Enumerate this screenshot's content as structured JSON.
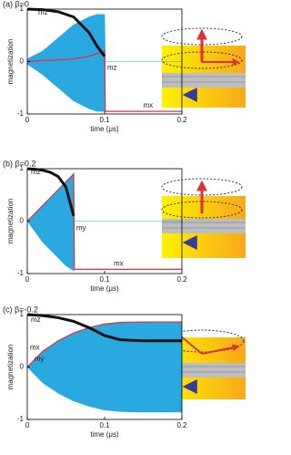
{
  "chart_data": [
    {
      "type": "line",
      "title": "(a)  β=0",
      "x_label": "time (μs)",
      "y_label": "magnetization",
      "xlim": [
        0,
        0.2
      ],
      "xticks": [
        0,
        0.1,
        0.2
      ],
      "ylim": [
        -1,
        1
      ],
      "yticks": [
        -1,
        0,
        1
      ],
      "x": [
        0,
        0.02,
        0.04,
        0.06,
        0.08,
        0.09,
        0.1,
        0.101,
        0.15,
        0.2
      ],
      "series": [
        {
          "name": "mz",
          "color": "#29a9e0",
          "values": [
            0.05,
            0.2,
            0.45,
            0.7,
            0.85,
            0.9,
            0.9,
            0,
            0,
            0
          ],
          "lower": [
            -0.05,
            -0.25,
            -0.5,
            -0.75,
            -0.9,
            -0.95,
            -0.95,
            0,
            0,
            0
          ]
        },
        {
          "name": "mx",
          "color": "#e0303a",
          "values": [
            0,
            0.02,
            0.03,
            0.05,
            0.1,
            0.15,
            0.2,
            -0.95,
            -0.95,
            -0.95
          ]
        },
        {
          "name": "mz",
          "color": "#111111",
          "values": [
            1,
            0.99,
            0.95,
            0.85,
            0.55,
            0.3,
            0.1,
            null,
            null,
            null
          ]
        }
      ]
    },
    {
      "type": "line",
      "title": "(b)  β=0.2",
      "x_label": "time (μs)",
      "y_label": "magnetization",
      "xlim": [
        0,
        0.2
      ],
      "xticks": [
        0,
        0.1,
        0.2
      ],
      "ylim": [
        -1,
        1
      ],
      "yticks": [
        -1,
        0,
        1
      ],
      "x": [
        0,
        0.01,
        0.02,
        0.03,
        0.04,
        0.05,
        0.06,
        0.061,
        0.1,
        0.2
      ],
      "series": [
        {
          "name": "my",
          "color": "#29a9e0",
          "values": [
            0,
            0.15,
            0.3,
            0.45,
            0.6,
            0.75,
            0.9,
            0,
            0,
            0
          ],
          "lower": [
            0,
            -0.2,
            -0.4,
            -0.55,
            -0.7,
            -0.85,
            -0.95,
            0,
            0,
            0
          ]
        },
        {
          "name": "mx",
          "color": "#e0303a",
          "values": [
            0,
            0.15,
            0.3,
            0.45,
            0.6,
            0.75,
            0.9,
            -0.92,
            -0.92,
            -0.92
          ]
        },
        {
          "name": "mz",
          "color": "#111111",
          "values": [
            1,
            0.99,
            0.97,
            0.93,
            0.85,
            0.65,
            0.1,
            null,
            null,
            null
          ]
        }
      ]
    },
    {
      "type": "line",
      "title": "(c)  β=-0.2",
      "x_label": "time (μs)",
      "y_label": "magnetization",
      "xlim": [
        0,
        0.2
      ],
      "xticks": [
        0,
        0.1,
        0.2
      ],
      "ylim": [
        -1,
        1
      ],
      "yticks": [
        -1,
        0,
        1
      ],
      "x": [
        0,
        0.02,
        0.04,
        0.06,
        0.08,
        0.1,
        0.12,
        0.15,
        0.2
      ],
      "series": [
        {
          "name": "my",
          "color": "#29a9e0",
          "values": [
            0,
            0.3,
            0.5,
            0.65,
            0.75,
            0.82,
            0.85,
            0.86,
            0.86
          ],
          "lower": [
            0,
            -0.3,
            -0.5,
            -0.65,
            -0.75,
            -0.82,
            -0.85,
            -0.86,
            -0.86
          ]
        },
        {
          "name": "mx",
          "color": "#e0303a",
          "values": [
            0,
            0.3,
            0.5,
            0.65,
            0.75,
            0.82,
            0.85,
            0.86,
            0.86
          ]
        },
        {
          "name": "mz",
          "color": "#111111",
          "values": [
            1,
            0.98,
            0.94,
            0.87,
            0.75,
            0.6,
            0.52,
            0.5,
            0.5
          ]
        }
      ]
    }
  ]
}
